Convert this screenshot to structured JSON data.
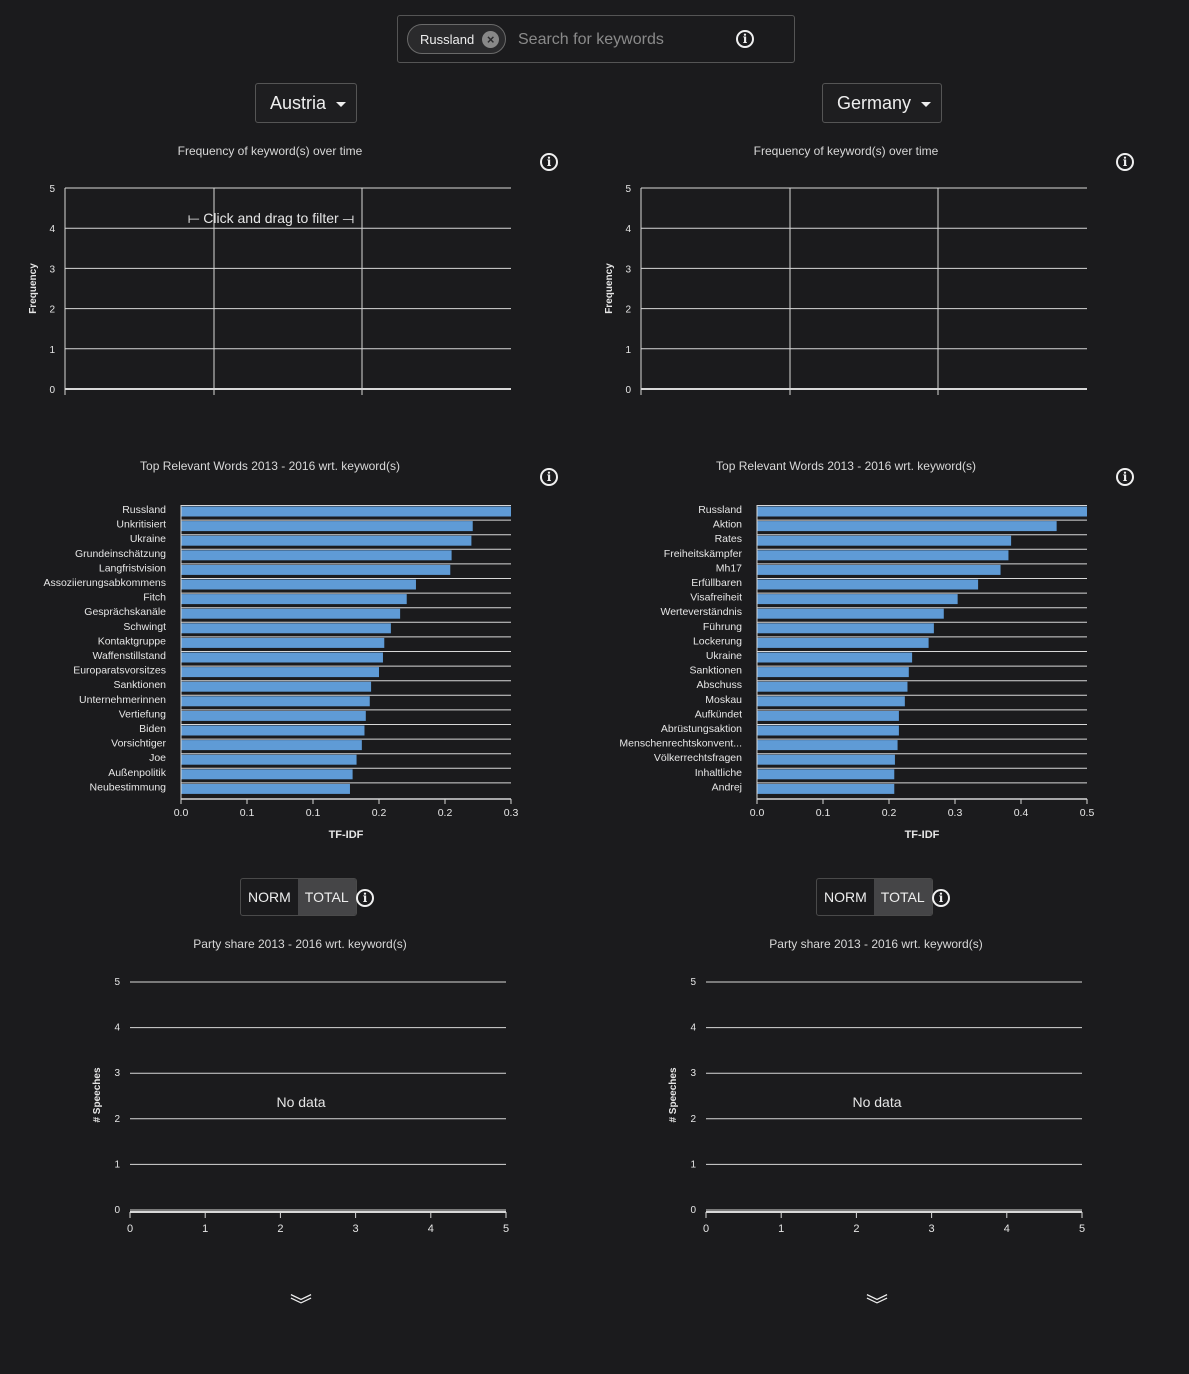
{
  "search": {
    "chip_label": "Russland",
    "placeholder": "Search for keywords",
    "info_icon": "info-icon"
  },
  "panels": [
    {
      "country": "Austria",
      "freq_title": "Frequency of keyword(s) over time",
      "freq_ylabel": "Frequency",
      "freq_overlay": "⟝ Click and drag to filter ⟞",
      "freq_yticks": [
        "0",
        "1",
        "2",
        "3",
        "4",
        "5"
      ],
      "tfidf_title": "Top Relevant Words 2013 - 2016 wrt. keyword(s)",
      "party_title": "Party share 2013 - 2016 wrt. keyword(s)",
      "party_ylabel": "# Speeches",
      "party_nodata": "No data",
      "toggle": {
        "norm": "NORM",
        "total": "TOTAL",
        "active": "TOTAL"
      }
    },
    {
      "country": "Germany",
      "freq_title": "Frequency of keyword(s) over time",
      "freq_ylabel": "Frequency",
      "freq_overlay": "",
      "freq_yticks": [
        "0",
        "1",
        "2",
        "3",
        "4",
        "5"
      ],
      "tfidf_title": "Top Relevant Words 2013 - 2016 wrt. keyword(s)",
      "party_title": "Party share 2013 - 2016 wrt. keyword(s)",
      "party_ylabel": "# Speeches",
      "party_nodata": "No data",
      "toggle": {
        "norm": "NORM",
        "total": "TOTAL",
        "active": "TOTAL"
      }
    }
  ],
  "chart_data": [
    {
      "type": "line",
      "title": "Frequency of keyword(s) over time",
      "ylabel": "Frequency",
      "ylim": [
        0,
        5
      ],
      "yticks": [
        0,
        1,
        2,
        3,
        4,
        5
      ],
      "series": [],
      "panel": "Austria"
    },
    {
      "type": "bar",
      "orientation": "horizontal",
      "title": "Top Relevant Words 2013 - 2016 wrt. keyword(s)",
      "xlabel": "TF-IDF",
      "xticks": [
        "0.0",
        "0.1",
        "0.1",
        "0.2",
        "0.2",
        "0.3"
      ],
      "xlim": [
        0,
        0.25
      ],
      "categories": [
        "Russland",
        "Unkritisiert",
        "Ukraine",
        "Grundeinschätzung",
        "Langfristvision",
        "Assoziierungsabkommens",
        "Fitch",
        "Gesprächskanäle",
        "Schwingt",
        "Kontaktgruppe",
        "Waffenstillstand",
        "Europaratsvorsitzes",
        "Sanktionen",
        "Unternehmerinnen",
        "Vertiefung",
        "Biden",
        "Vorsichtiger",
        "Joe",
        "Außenpolitik",
        "Neubestimmung"
      ],
      "values": [
        0.25,
        0.221,
        0.22,
        0.205,
        0.204,
        0.178,
        0.171,
        0.166,
        0.159,
        0.154,
        0.153,
        0.15,
        0.144,
        0.143,
        0.14,
        0.139,
        0.137,
        0.133,
        0.13,
        0.128
      ],
      "panel": "Austria"
    },
    {
      "type": "bar",
      "title": "Party share 2013 - 2016 wrt. keyword(s)",
      "ylabel": "# Speeches",
      "xlim": [
        0,
        5
      ],
      "ylim": [
        0,
        5
      ],
      "xticks": [
        0,
        1,
        2,
        3,
        4,
        5
      ],
      "yticks": [
        0,
        1,
        2,
        3,
        4,
        5
      ],
      "values": [],
      "annotation": "No data",
      "panel": "Austria"
    },
    {
      "type": "line",
      "title": "Frequency of keyword(s) over time",
      "ylabel": "Frequency",
      "ylim": [
        0,
        5
      ],
      "yticks": [
        0,
        1,
        2,
        3,
        4,
        5
      ],
      "series": [],
      "panel": "Germany"
    },
    {
      "type": "bar",
      "orientation": "horizontal",
      "title": "Top Relevant Words 2013 - 2016 wrt. keyword(s)",
      "xlabel": "TF-IDF",
      "xticks": [
        "0.0",
        "0.1",
        "0.2",
        "0.3",
        "0.4",
        "0.5"
      ],
      "xlim": [
        0,
        0.5
      ],
      "categories": [
        "Russland",
        "Aktion",
        "Rates",
        "Freiheitskämpfer",
        "Mh17",
        "Erfüllbaren",
        "Visafreiheit",
        "Werteverständnis",
        "Führung",
        "Lockerung",
        "Ukraine",
        "Sanktionen",
        "Abschuss",
        "Moskau",
        "Aufkündet",
        "Abrüstungsaktion",
        "Menschenrechtskonvent...",
        "Völkerrechtsfragen",
        "Inhaltliche",
        "Andrej"
      ],
      "values": [
        0.5,
        0.454,
        0.385,
        0.381,
        0.369,
        0.335,
        0.304,
        0.283,
        0.268,
        0.26,
        0.235,
        0.23,
        0.228,
        0.224,
        0.215,
        0.215,
        0.213,
        0.209,
        0.208,
        0.208
      ],
      "panel": "Germany"
    },
    {
      "type": "bar",
      "title": "Party share 2013 - 2016 wrt. keyword(s)",
      "ylabel": "# Speeches",
      "xlim": [
        0,
        5
      ],
      "ylim": [
        0,
        5
      ],
      "xticks": [
        0,
        1,
        2,
        3,
        4,
        5
      ],
      "yticks": [
        0,
        1,
        2,
        3,
        4,
        5
      ],
      "values": [],
      "annotation": "No data",
      "panel": "Germany"
    }
  ],
  "colors": {
    "background": "#1b1b1d",
    "bar": "#5f9bd6",
    "grid": "#d8d8d8"
  },
  "footer": {
    "expand_icon": "double-chevron-down-icon",
    "glyph": "︾"
  }
}
